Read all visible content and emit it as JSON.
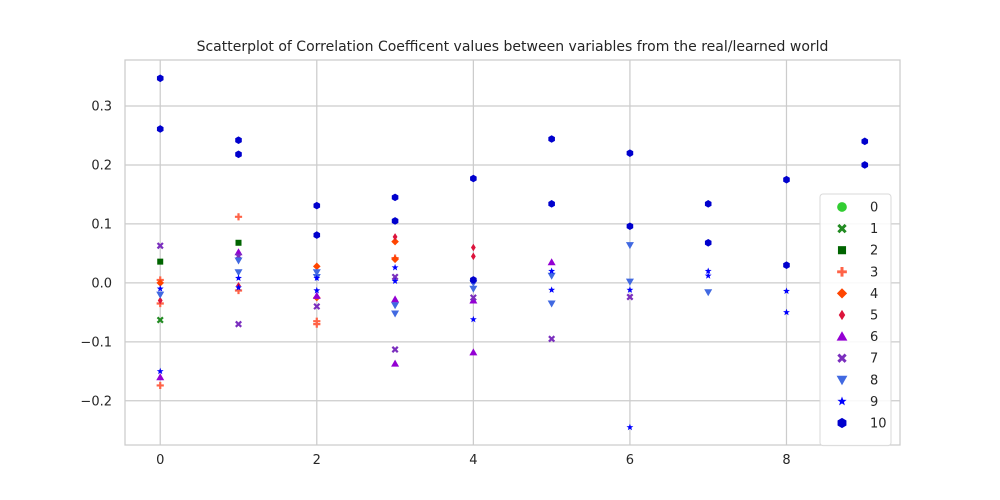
{
  "chart_data": {
    "type": "scatter",
    "title": "Scatterplot of Correlation Coefficent values between variables from the real/learned world",
    "xlabel": "",
    "ylabel": "",
    "xlim": [
      -0.45,
      9.45
    ],
    "ylim": [
      -0.275,
      0.378
    ],
    "xticks": [
      0,
      2,
      4,
      6,
      8
    ],
    "yticks": [
      -0.2,
      -0.1,
      0.0,
      0.1,
      0.2,
      0.3
    ],
    "ytick_labels": [
      "−0.2",
      "−0.1",
      "0.0",
      "0.1",
      "0.2",
      "0.3"
    ],
    "grid": true,
    "legend_position": "right",
    "series": [
      {
        "name": "0",
        "marker": "circle",
        "color": "#32cd32",
        "points": []
      },
      {
        "name": "1",
        "marker": "x",
        "color": "#228b22",
        "points": [
          [
            0,
            -0.063
          ]
        ]
      },
      {
        "name": "2",
        "marker": "square",
        "color": "#006400",
        "points": [
          [
            0,
            0.036
          ],
          [
            1,
            0.068
          ]
        ]
      },
      {
        "name": "3",
        "marker": "plus",
        "color": "#ff6347",
        "points": [
          [
            0,
            -0.174
          ],
          [
            0,
            0.005
          ],
          [
            0,
            -0.035
          ],
          [
            1,
            0.112
          ],
          [
            1,
            -0.013
          ],
          [
            2,
            -0.065
          ],
          [
            2,
            -0.07
          ],
          [
            3,
            0.042
          ]
        ]
      },
      {
        "name": "4",
        "marker": "diamond",
        "color": "#ff4500",
        "points": [
          [
            0,
            0.0
          ],
          [
            2,
            0.028
          ],
          [
            2,
            -0.025
          ],
          [
            3,
            0.07
          ],
          [
            3,
            0.04
          ]
        ]
      },
      {
        "name": "5",
        "marker": "thin-diamond",
        "color": "#dc143c",
        "points": [
          [
            0,
            -0.03
          ],
          [
            1,
            -0.005
          ],
          [
            3,
            0.078
          ],
          [
            4,
            0.06
          ],
          [
            4,
            0.045
          ]
        ]
      },
      {
        "name": "6",
        "marker": "triangle-up",
        "color": "#9400d3",
        "points": [
          [
            0,
            -0.16
          ],
          [
            1,
            0.052
          ],
          [
            2,
            -0.022
          ],
          [
            3,
            -0.028
          ],
          [
            3,
            -0.137
          ],
          [
            4,
            -0.118
          ],
          [
            4,
            -0.03
          ],
          [
            5,
            0.035
          ]
        ]
      },
      {
        "name": "7",
        "marker": "x",
        "color": "#7b2fbe",
        "points": [
          [
            0,
            0.063
          ],
          [
            1,
            -0.07
          ],
          [
            1,
            0.045
          ],
          [
            2,
            -0.04
          ],
          [
            3,
            -0.113
          ],
          [
            3,
            0.01
          ],
          [
            4,
            -0.025
          ],
          [
            5,
            -0.095
          ],
          [
            6,
            -0.024
          ]
        ]
      },
      {
        "name": "8",
        "marker": "triangle-down",
        "color": "#4169e1",
        "points": [
          [
            0,
            -0.02
          ],
          [
            1,
            0.038
          ],
          [
            1,
            0.018
          ],
          [
            2,
            0.018
          ],
          [
            2,
            0.01
          ],
          [
            3,
            -0.052
          ],
          [
            3,
            -0.038
          ],
          [
            4,
            -0.01
          ],
          [
            4,
            0.0
          ],
          [
            5,
            -0.035
          ],
          [
            5,
            0.012
          ],
          [
            6,
            0.064
          ],
          [
            6,
            0.002
          ],
          [
            7,
            -0.016
          ]
        ]
      },
      {
        "name": "9",
        "marker": "star",
        "color": "#0000ff",
        "points": [
          [
            0,
            -0.15
          ],
          [
            0,
            -0.01
          ],
          [
            1,
            0.008
          ],
          [
            1,
            -0.008
          ],
          [
            2,
            -0.013
          ],
          [
            2,
            0.008
          ],
          [
            3,
            0.026
          ],
          [
            3,
            0.003
          ],
          [
            4,
            -0.062
          ],
          [
            4,
            0.003
          ],
          [
            5,
            -0.012
          ],
          [
            5,
            0.02
          ],
          [
            6,
            -0.245
          ],
          [
            6,
            -0.012
          ],
          [
            7,
            0.02
          ],
          [
            7,
            0.012
          ],
          [
            8,
            -0.05
          ],
          [
            8,
            -0.014
          ]
        ]
      },
      {
        "name": "10",
        "marker": "hexagon",
        "color": "#0000cd",
        "points": [
          [
            0,
            0.347
          ],
          [
            0,
            0.261
          ],
          [
            1,
            0.242
          ],
          [
            1,
            0.218
          ],
          [
            2,
            0.131
          ],
          [
            2,
            0.081
          ],
          [
            3,
            0.145
          ],
          [
            3,
            0.105
          ],
          [
            4,
            0.177
          ],
          [
            4,
            0.005
          ],
          [
            5,
            0.244
          ],
          [
            5,
            0.134
          ],
          [
            6,
            0.22
          ],
          [
            6,
            0.096
          ],
          [
            7,
            0.134
          ],
          [
            7,
            0.068
          ],
          [
            8,
            0.175
          ],
          [
            8,
            0.03
          ],
          [
            9,
            0.24
          ],
          [
            9,
            0.2
          ]
        ]
      }
    ]
  }
}
